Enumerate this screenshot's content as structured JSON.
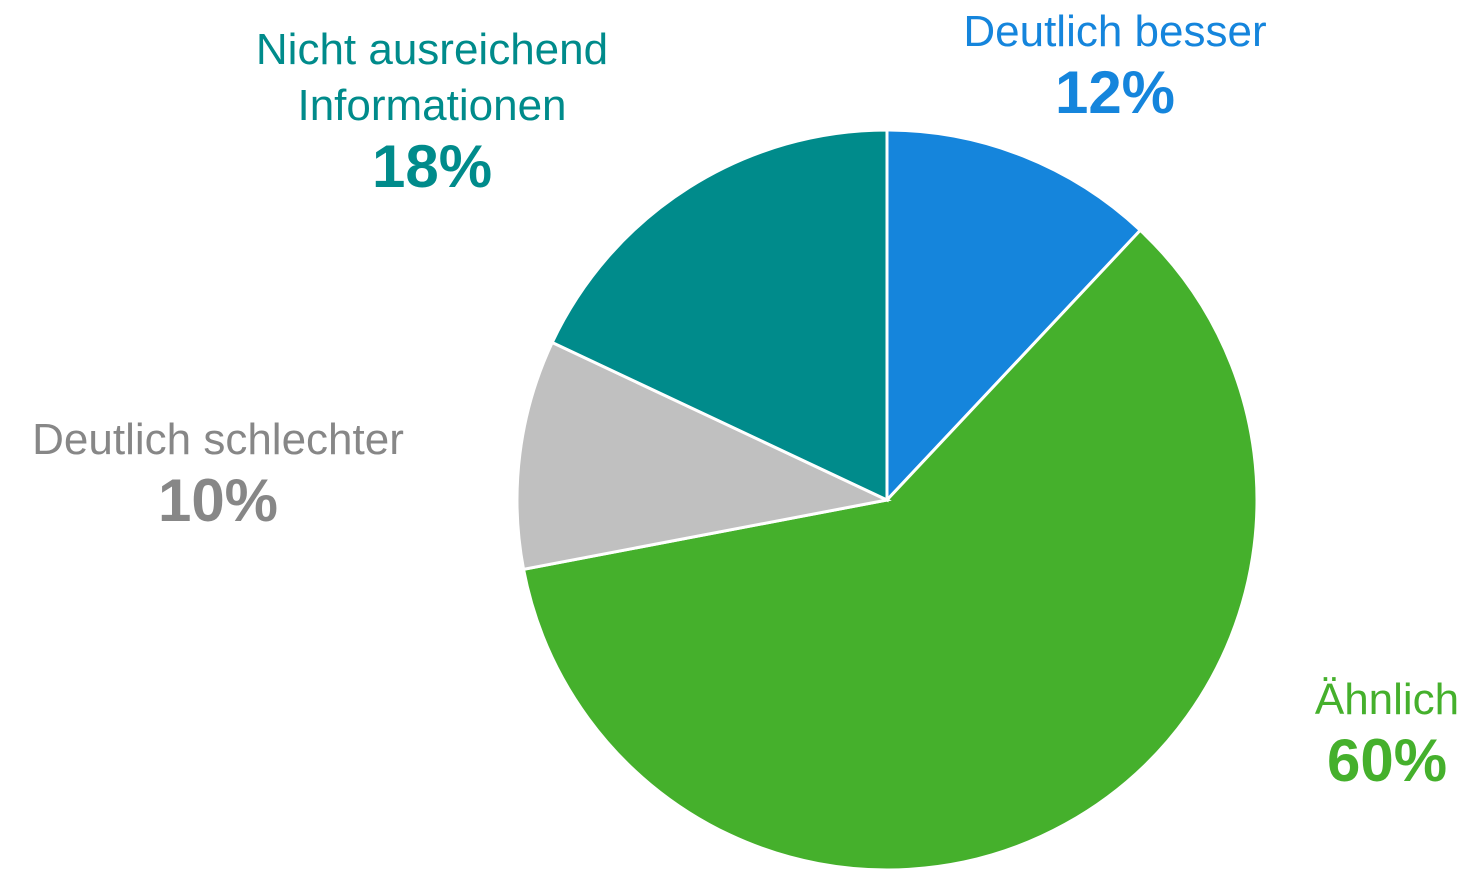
{
  "chart_data": {
    "type": "pie",
    "categories": [
      "Deutlich besser",
      "Ähnlich",
      "Deutlich schlechter",
      "Nicht ausreichend Informationen"
    ],
    "values": [
      12,
      60,
      10,
      18
    ],
    "value_labels": [
      "12%",
      "60%",
      "10%",
      "18%"
    ],
    "colors": [
      "#1585dc",
      "#45b02c",
      "#c0c0c0",
      "#008b8b"
    ],
    "label_colors": [
      "#1585dc",
      "#45b02c",
      "#878787",
      "#008b8b"
    ]
  }
}
